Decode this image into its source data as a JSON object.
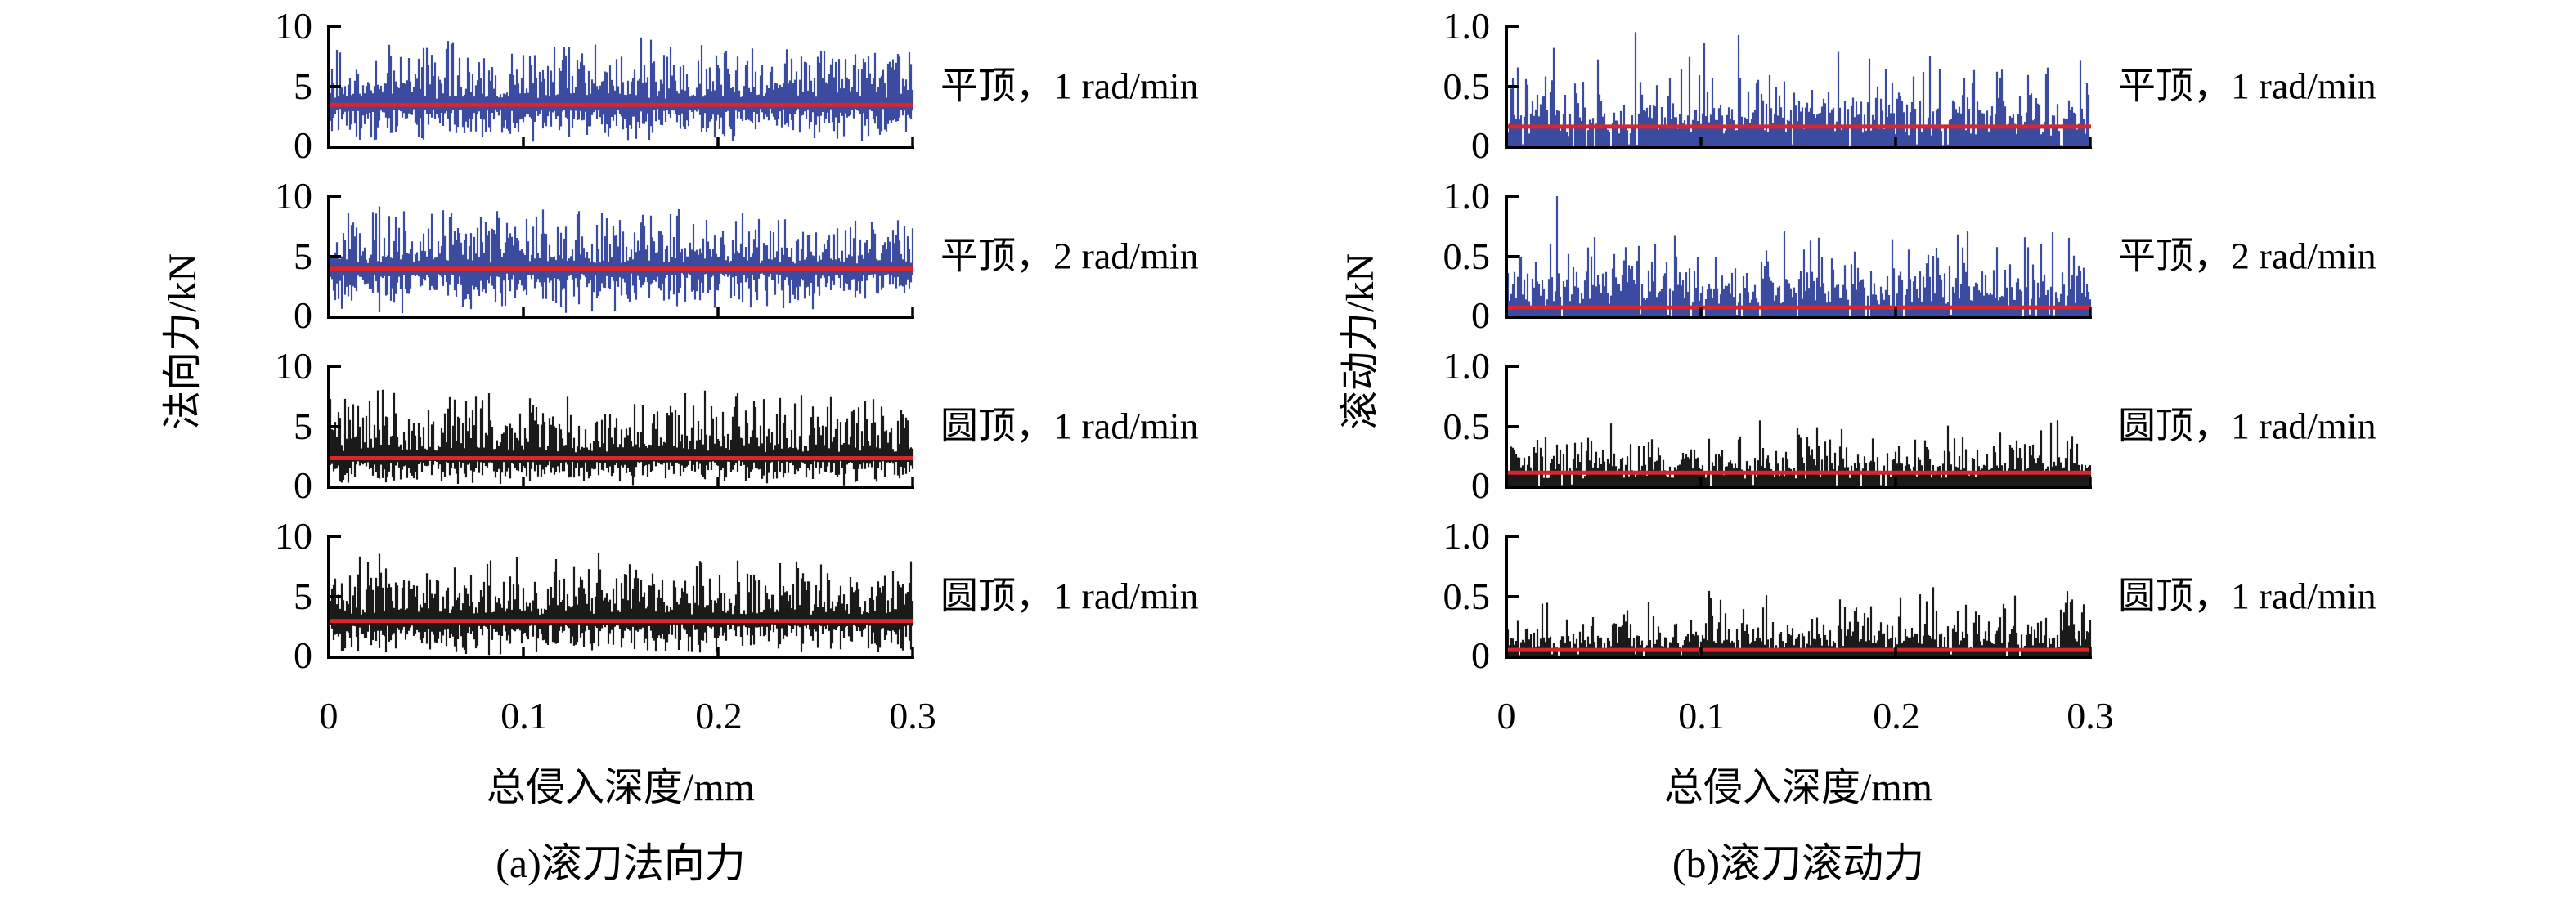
{
  "figure": {
    "background": "#ffffff"
  },
  "chart_data": [
    {
      "type": "line",
      "panel": "a",
      "panel_caption": "(a)滚刀法向力",
      "xlabel": "总侵入深度/mm",
      "ylabel": "法向力/kN",
      "xlim": [
        0,
        0.3
      ],
      "xticks": [
        0,
        0.1,
        0.2,
        0.3
      ],
      "xtick_labels": [
        "0",
        "0.1",
        "0.2",
        "0.3"
      ],
      "ylim": [
        0,
        10
      ],
      "yticks": [
        0,
        5,
        10
      ],
      "ytick_labels": [
        "10",
        "5",
        "0"
      ],
      "grid": false,
      "legend": "none",
      "axis_color": "#000000",
      "mean_line_color": "#d9252b",
      "subplots": [
        {
          "label": "平顶，1 rad/min",
          "trace_color": "#3b4ca0",
          "trace_style": "noise-band",
          "mean_kN": 3.5,
          "signal_min": 0.2,
          "signal_max": 9.3,
          "seed": 101
        },
        {
          "label": "平顶，2 rad/min",
          "trace_color": "#3b4ca0",
          "trace_style": "noise-band",
          "mean_kN": 4.0,
          "signal_min": 0.2,
          "signal_max": 9.2,
          "seed": 202
        },
        {
          "label": "圆顶，1 rad/min",
          "trace_color": "#1a1a1a",
          "trace_style": "noise-band",
          "mean_kN": 2.4,
          "signal_min": 0.1,
          "signal_max": 8.3,
          "seed": 303
        },
        {
          "label": "圆顶，1 rad/min",
          "trace_color": "#1a1a1a",
          "trace_style": "noise-band",
          "mean_kN": 3.0,
          "signal_min": 0.1,
          "signal_max": 8.6,
          "seed": 404
        }
      ]
    },
    {
      "type": "line",
      "panel": "b",
      "panel_caption": "(b)滚刀滚动力",
      "xlabel": "总侵入深度/mm",
      "ylabel": "滚动力/kN",
      "xlim": [
        0,
        0.3
      ],
      "xticks": [
        0,
        0.1,
        0.2,
        0.3
      ],
      "xtick_labels": [
        "0",
        "0.1",
        "0.2",
        "0.3"
      ],
      "ylim": [
        0,
        1.0
      ],
      "yticks": [
        0,
        0.5,
        1.0
      ],
      "ytick_labels": [
        "1.0",
        "0.5",
        "0"
      ],
      "grid": false,
      "legend": "none",
      "axis_color": "#000000",
      "mean_line_color": "#d9252b",
      "subplots": [
        {
          "label": "平顶，1 rad/min",
          "trace_color": "#3b4ca0",
          "trace_style": "positive-spikes",
          "mean_kN": 0.17,
          "signal_min": 0,
          "signal_max": 0.95,
          "typical_range": [
            0.05,
            0.45
          ],
          "seed": 505
        },
        {
          "label": "平顶，2 rad/min",
          "trace_color": "#3b4ca0",
          "trace_style": "positive-spikes",
          "mean_kN": 0.08,
          "signal_min": 0,
          "signal_max": 1.0,
          "typical_range": [
            0.05,
            0.45
          ],
          "seed": 606
        },
        {
          "label": "圆顶，1 rad/min",
          "trace_color": "#1a1a1a",
          "trace_style": "positive-spikes",
          "mean_kN": 0.12,
          "signal_min": 0,
          "signal_max": 0.62,
          "typical_range": [
            0.04,
            0.33
          ],
          "seed": 707
        },
        {
          "label": "圆顶，1 rad/min",
          "trace_color": "#1a1a1a",
          "trace_style": "positive-spikes",
          "mean_kN": 0.06,
          "signal_min": 0,
          "signal_max": 0.68,
          "typical_range": [
            0.03,
            0.3
          ],
          "seed": 808
        }
      ]
    }
  ]
}
